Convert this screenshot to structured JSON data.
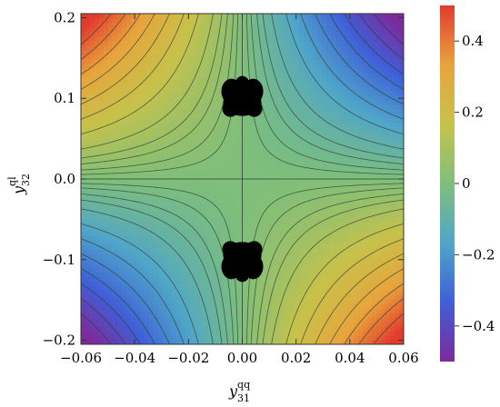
{
  "chart_data": {
    "type": "heatmap",
    "title": "",
    "xlabel": {
      "base": "y",
      "sub": "31",
      "sup": "qq"
    },
    "ylabel": {
      "base": "y",
      "sub": "32",
      "sup": "ql"
    },
    "xlim": [
      -0.06,
      0.06
    ],
    "ylim": [
      -0.205,
      0.205
    ],
    "x_ticks": [
      -0.06,
      -0.04,
      -0.02,
      0.0,
      0.02,
      0.04,
      0.06
    ],
    "x_tick_labels": [
      "−0.06",
      "−0.04",
      "−0.02",
      "0.00",
      "0.02",
      "0.04",
      "0.06"
    ],
    "y_ticks": [
      -0.2,
      -0.1,
      0.0,
      0.1,
      0.2
    ],
    "y_tick_labels": [
      "−0.2",
      "−0.1",
      "0.0",
      "0.1",
      "0.2"
    ],
    "colorbar": {
      "range": [
        -0.5,
        0.5
      ],
      "ticks": [
        -0.4,
        -0.2,
        0.0,
        0.2,
        0.4
      ],
      "tick_labels": [
        "−0.4",
        "−0.2",
        "0",
        "0.2",
        "0.4"
      ],
      "colors": [
        "#7d2a9c",
        "#3f5fd8",
        "#4fa6c8",
        "#7fbf7a",
        "#c6c24b",
        "#e8a43c",
        "#e23a2e"
      ]
    },
    "surface": "z = -k · x · y, saturated at ±0.5",
    "contour_levels": [
      -0.45,
      -0.4,
      -0.35,
      -0.3,
      -0.25,
      -0.2,
      -0.15,
      -0.1,
      -0.07,
      -0.05,
      -0.03,
      -0.015,
      0.015,
      0.03,
      0.05,
      0.07,
      0.1,
      0.15,
      0.2,
      0.25,
      0.3,
      0.35,
      0.4,
      0.45
    ],
    "excluded_regions": [
      {
        "x_center": 0.0,
        "y_center": 0.095,
        "color": "#000000"
      },
      {
        "x_center": 0.0,
        "y_center": -0.095,
        "color": "#000000"
      }
    ],
    "grid": false
  }
}
